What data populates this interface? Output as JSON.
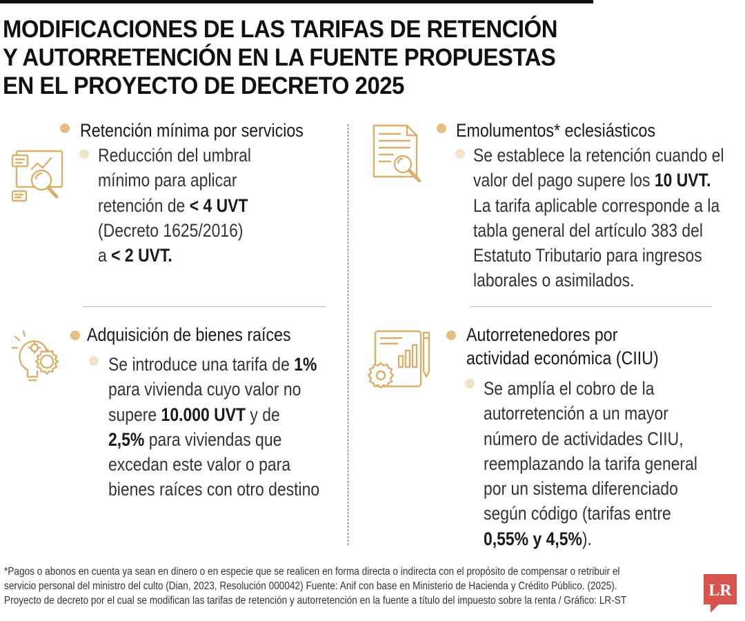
{
  "title": {
    "line1": "MODIFICACIONES DE LAS TARIFAS DE RETENCIÓN",
    "line2": "Y AUTORRETENCIÓN EN LA FUENTE PROPUESTAS",
    "line3": "EN EL PROYECTO DE DECRETO 2025"
  },
  "sections": {
    "retencion": {
      "heading": "Retención mínima por servicios",
      "l1": "Reducción del umbral",
      "l2": "mínimo para aplicar",
      "l3a": "retención de ",
      "l3b": "< 4 UVT",
      "l4": "(Decreto 1625/2016)",
      "l5a": "a ",
      "l5b": "< 2 UVT."
    },
    "emolumentos": {
      "heading": "Emolumentos* eclesiásticos",
      "l1": "Se establece la retención cuando el",
      "l2a": "valor del pago supere los ",
      "l2b": "10 UVT.",
      "l3": "La tarifa aplicable corresponde a la",
      "l4": "tabla general del artículo 383 del",
      "l5": "Estatuto Tributario para ingresos",
      "l6": "laborales o asimilados."
    },
    "bienes": {
      "heading": "Adquisición de bienes raíces",
      "l1a": "Se introduce una tarifa de ",
      "l1b": "1%",
      "l2": "para vivienda cuyo valor no",
      "l3a": "supere ",
      "l3b": "10.000 UVT",
      "l3c": " y de",
      "l4a": "2,5%",
      "l4b": " para viviendas que",
      "l5": "excedan este valor o para",
      "l6": "bienes raíces con otro destino"
    },
    "autorretenedores": {
      "heading1": "Autorretenedores por",
      "heading2": "actividad económica (CIIU)",
      "l1": "Se amplía el cobro de la",
      "l2": "autorretención a un mayor",
      "l3": "número de actividades CIIU,",
      "l4": "reemplazando la tarifa general",
      "l5": "por un sistema diferenciado",
      "l6": "según código (tarifas entre",
      "l7a": "0,55% y 4,5%",
      "l7b": ")."
    }
  },
  "footnote": {
    "line1": "*Pagos o abonos en cuenta ya sean en dinero o en especie que se realicen en forma directa o indirecta con el propósito de compensar o retribuir el",
    "line2": "servicio personal del ministro del culto (Dian, 2023, Resolución 000042) Fuente: Anif con base en Ministerio de Hacienda y Crédito Público. (2025).",
    "line3": "Proyecto de decreto por el cual se modifican las tarifas de retención y autorretención en la fuente a título del impuesto sobre la renta / Gráfico: LR-ST"
  },
  "logo": {
    "text": "LR"
  },
  "colors": {
    "accent": "#e2bf7e",
    "accent_light": "#f3e3c8",
    "icon": "#d9b069",
    "logo_red": "#d9534f"
  }
}
